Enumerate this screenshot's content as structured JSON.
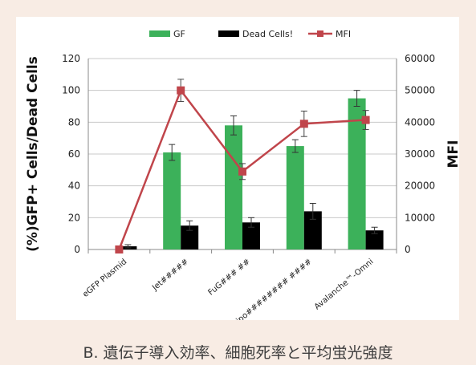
{
  "caption": "B. 遺伝子導入効率、細胞死率と平均蛍光強度",
  "chart_data": {
    "type": "bar",
    "categories": [
      "eGFP Plasmid",
      "Jet#####",
      "FuG### ##",
      "Lipo######## ####",
      "Avalanche™-Omni"
    ],
    "series": [
      {
        "name": "GF",
        "kind": "bar",
        "axis": "left",
        "color": "#3cb15a",
        "values": [
          0,
          61,
          78,
          65,
          95
        ],
        "errors": [
          0,
          5,
          6,
          4,
          5
        ]
      },
      {
        "name": "Dead Cells!",
        "kind": "bar",
        "axis": "left",
        "color": "#000000",
        "values": [
          2,
          15,
          17,
          24,
          12
        ],
        "errors": [
          1,
          3,
          3,
          5,
          2
        ]
      },
      {
        "name": "MFI",
        "kind": "line",
        "axis": "right",
        "color": "#c0454b",
        "values": [
          0,
          50000,
          24500,
          39500,
          40700
        ],
        "errors": [
          0,
          3500,
          2500,
          4000,
          3000
        ]
      }
    ],
    "ylabel": "(%)GFP+ Cells/Dead Cells",
    "y2label": "MFI",
    "ylim": [
      0,
      120
    ],
    "y2lim": [
      0,
      60000
    ],
    "yticks": [
      0,
      20,
      40,
      60,
      80,
      100,
      120
    ],
    "y2ticks": [
      0,
      10000,
      20000,
      30000,
      40000,
      50000,
      60000
    ],
    "grid": true,
    "legend": "top"
  }
}
